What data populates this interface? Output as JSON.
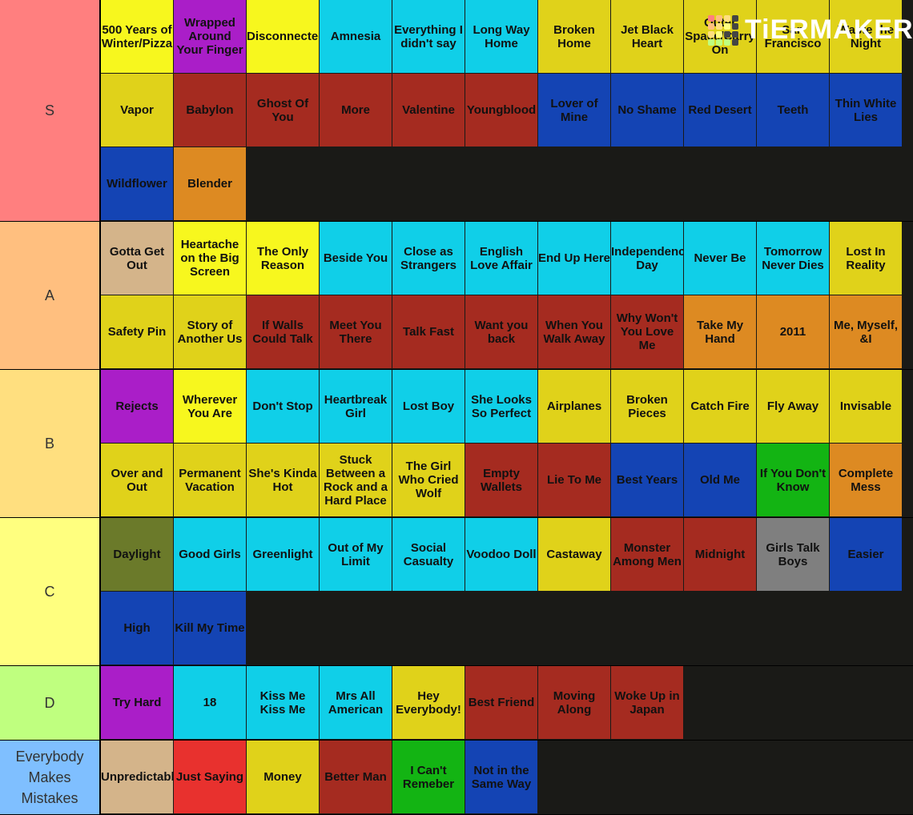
{
  "header": {
    "logo": "TiERMAKER"
  },
  "tiers": [
    {
      "label": "S",
      "color": "#ff7f7f",
      "items": [
        {
          "text": "500 Years of Winter/Pizza",
          "color": "#f7f71e"
        },
        {
          "text": "Wrapped Around Your Finger",
          "color": "#aa1ec8"
        },
        {
          "text": "Disconnected",
          "color": "#f7f71e"
        },
        {
          "text": "Amnesia",
          "color": "#10cfe8"
        },
        {
          "text": "Everything I didn't say",
          "color": "#10cfe8"
        },
        {
          "text": "Long Way Home",
          "color": "#10cfe8"
        },
        {
          "text": "Broken Home",
          "color": "#e0d21a"
        },
        {
          "text": "Jet Black Heart",
          "color": "#e0d21a"
        },
        {
          "text": "Outer Space/Carry On",
          "color": "#e0d21a"
        },
        {
          "text": "San Francisco",
          "color": "#e0d21a"
        },
        {
          "text": "Waste the Night",
          "color": "#e0d21a"
        },
        {
          "text": "Vapor",
          "color": "#e0d21a"
        },
        {
          "text": "Babylon",
          "color": "#a52b20"
        },
        {
          "text": "Ghost Of You",
          "color": "#a52b20"
        },
        {
          "text": "More",
          "color": "#a52b20"
        },
        {
          "text": "Valentine",
          "color": "#a52b20"
        },
        {
          "text": "Youngblood",
          "color": "#a52b20"
        },
        {
          "text": "Lover of Mine",
          "color": "#1444b4"
        },
        {
          "text": "No Shame",
          "color": "#1444b4"
        },
        {
          "text": "Red Desert",
          "color": "#1444b4"
        },
        {
          "text": "Teeth",
          "color": "#1444b4"
        },
        {
          "text": "Thin White Lies",
          "color": "#1444b4"
        },
        {
          "text": "Wildflower",
          "color": "#1444b4"
        },
        {
          "text": "Blender",
          "color": "#dd8a22"
        }
      ]
    },
    {
      "label": "A",
      "color": "#ffbf7f",
      "items": [
        {
          "text": "Gotta Get Out",
          "color": "#d4b48a"
        },
        {
          "text": "Heartache on the Big Screen",
          "color": "#f7f71e"
        },
        {
          "text": "The Only Reason",
          "color": "#f7f71e"
        },
        {
          "text": "Beside You",
          "color": "#10cfe8"
        },
        {
          "text": "Close as Strangers",
          "color": "#10cfe8"
        },
        {
          "text": "English Love Affair",
          "color": "#10cfe8"
        },
        {
          "text": "End Up Here",
          "color": "#10cfe8"
        },
        {
          "text": "Independence Day",
          "color": "#10cfe8"
        },
        {
          "text": "Never Be",
          "color": "#10cfe8"
        },
        {
          "text": "Tomorrow Never Dies",
          "color": "#10cfe8"
        },
        {
          "text": "Lost In Reality",
          "color": "#e0d21a"
        },
        {
          "text": "Safety Pin",
          "color": "#e0d21a"
        },
        {
          "text": "Story of Another Us",
          "color": "#e0d21a"
        },
        {
          "text": "If Walls Could Talk",
          "color": "#a52b20"
        },
        {
          "text": "Meet You There",
          "color": "#a52b20"
        },
        {
          "text": "Talk Fast",
          "color": "#a52b20"
        },
        {
          "text": "Want you back",
          "color": "#a52b20"
        },
        {
          "text": "When You Walk Away",
          "color": "#a52b20"
        },
        {
          "text": "Why Won't You Love Me",
          "color": "#a52b20"
        },
        {
          "text": "Take My Hand",
          "color": "#dd8a22"
        },
        {
          "text": "2011",
          "color": "#dd8a22"
        },
        {
          "text": "Me, Myself, &I",
          "color": "#dd8a22"
        }
      ]
    },
    {
      "label": "B",
      "color": "#ffdf7f",
      "items": [
        {
          "text": "Rejects",
          "color": "#aa1ec8"
        },
        {
          "text": "Wherever You Are",
          "color": "#f7f71e"
        },
        {
          "text": "Don't Stop",
          "color": "#10cfe8"
        },
        {
          "text": "Heartbreak Girl",
          "color": "#10cfe8"
        },
        {
          "text": "Lost Boy",
          "color": "#10cfe8"
        },
        {
          "text": "She Looks So Perfect",
          "color": "#10cfe8"
        },
        {
          "text": "Airplanes",
          "color": "#e0d21a"
        },
        {
          "text": "Broken Pieces",
          "color": "#e0d21a"
        },
        {
          "text": "Catch Fire",
          "color": "#e0d21a"
        },
        {
          "text": "Fly Away",
          "color": "#e0d21a"
        },
        {
          "text": "Invisable",
          "color": "#e0d21a"
        },
        {
          "text": "Over and Out",
          "color": "#e0d21a"
        },
        {
          "text": "Permanent Vacation",
          "color": "#e0d21a"
        },
        {
          "text": "She's Kinda Hot",
          "color": "#e0d21a"
        },
        {
          "text": "Stuck Between a Rock and a Hard Place",
          "color": "#e0d21a"
        },
        {
          "text": "The Girl Who Cried Wolf",
          "color": "#e0d21a"
        },
        {
          "text": "Empty Wallets",
          "color": "#a52b20"
        },
        {
          "text": "Lie To Me",
          "color": "#a52b20"
        },
        {
          "text": "Best Years",
          "color": "#1444b4"
        },
        {
          "text": "Old Me",
          "color": "#1444b4"
        },
        {
          "text": "If You Don't Know",
          "color": "#13b413"
        },
        {
          "text": "Complete Mess",
          "color": "#dd8a22"
        }
      ]
    },
    {
      "label": "C",
      "color": "#ffff7f",
      "items": [
        {
          "text": "Daylight",
          "color": "#6b7a2a"
        },
        {
          "text": "Good Girls",
          "color": "#10cfe8"
        },
        {
          "text": "Greenlight",
          "color": "#10cfe8"
        },
        {
          "text": "Out of My Limit",
          "color": "#10cfe8"
        },
        {
          "text": "Social Casualty",
          "color": "#10cfe8"
        },
        {
          "text": "Voodoo Doll",
          "color": "#10cfe8"
        },
        {
          "text": "Castaway",
          "color": "#e0d21a"
        },
        {
          "text": "Monster Among Men",
          "color": "#a52b20"
        },
        {
          "text": "Midnight",
          "color": "#a52b20"
        },
        {
          "text": "Girls Talk Boys",
          "color": "#7f7f7f"
        },
        {
          "text": "Easier",
          "color": "#1444b4"
        },
        {
          "text": "High",
          "color": "#1444b4"
        },
        {
          "text": "Kill My Time",
          "color": "#1444b4"
        }
      ]
    },
    {
      "label": "D",
      "color": "#bfff7f",
      "items": [
        {
          "text": "Try Hard",
          "color": "#aa1ec8"
        },
        {
          "text": "18",
          "color": "#10cfe8"
        },
        {
          "text": "Kiss Me Kiss Me",
          "color": "#10cfe8"
        },
        {
          "text": "Mrs All American",
          "color": "#10cfe8"
        },
        {
          "text": "Hey Everybody!",
          "color": "#e0d21a"
        },
        {
          "text": "Best Friend",
          "color": "#a52b20"
        },
        {
          "text": "Moving Along",
          "color": "#a52b20"
        },
        {
          "text": "Woke Up in Japan",
          "color": "#a52b20"
        }
      ]
    },
    {
      "label": "Everybody Makes Mistakes",
      "color": "#7fbfff",
      "items": [
        {
          "text": "Unpredictable",
          "color": "#d4b48a"
        },
        {
          "text": "Just Saying",
          "color": "#e8312e"
        },
        {
          "text": "Money",
          "color": "#e0d21a"
        },
        {
          "text": "Better Man",
          "color": "#a52b20"
        },
        {
          "text": "I Can't Remeber",
          "color": "#13b413"
        },
        {
          "text": "Not in the Same Way",
          "color": "#1444b4"
        }
      ]
    }
  ]
}
